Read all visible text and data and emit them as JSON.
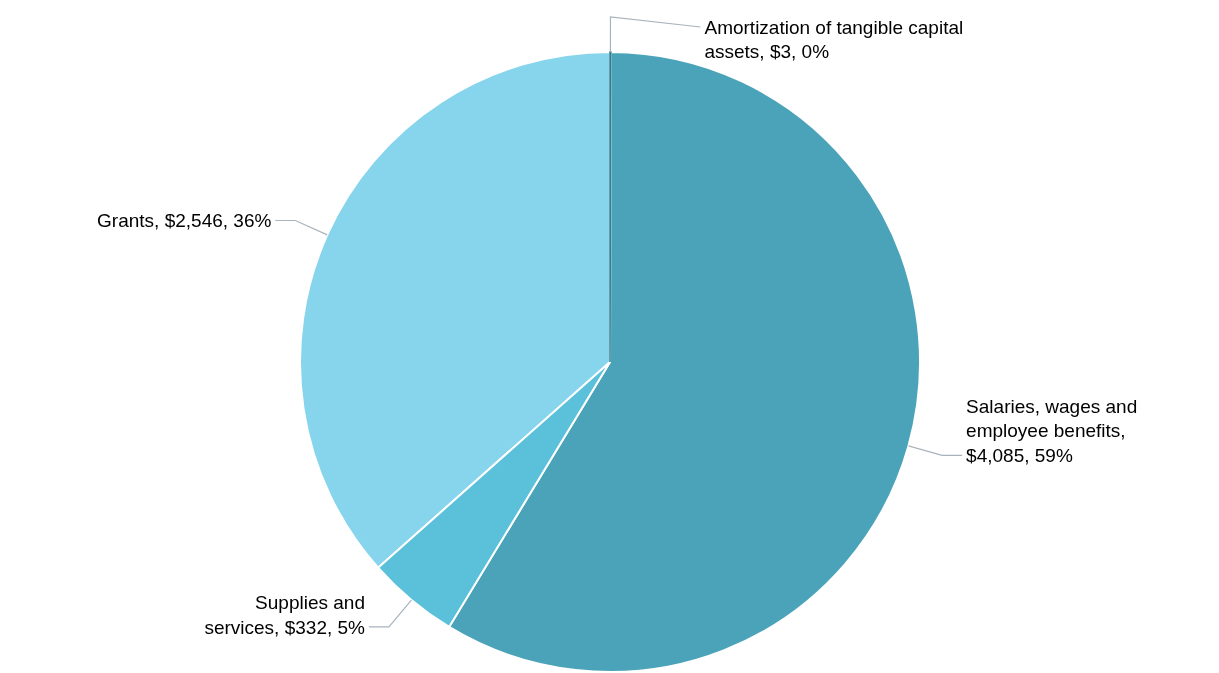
{
  "chart_data": {
    "type": "pie",
    "categories": [
      "Amortization of tangible capital assets, $3, 0%",
      "Salaries, wages and employee benefits, $4,085, 59%",
      "Supplies and services, $332, 5%",
      "Grants, $2,546, 36%"
    ],
    "values": [
      3,
      4085,
      332,
      2546
    ],
    "colors": [
      "#2f7f93",
      "#4aa3b8",
      "#5bc0da",
      "#87d5ec"
    ]
  }
}
